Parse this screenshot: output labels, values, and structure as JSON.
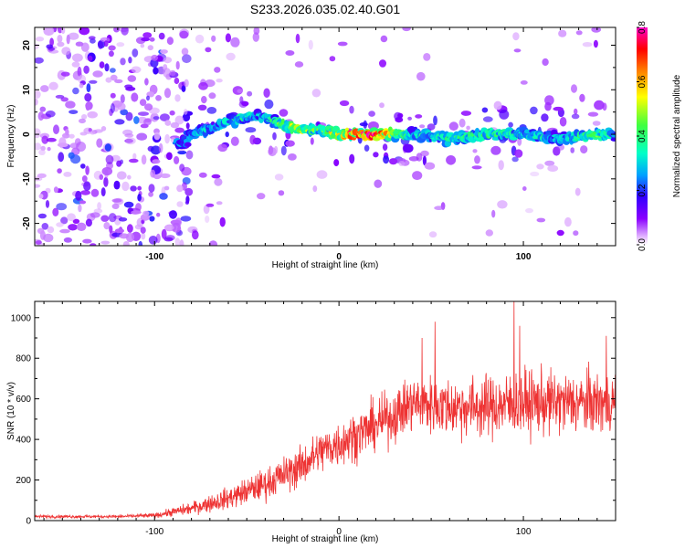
{
  "title": "S233.2026.035.02.40.G01",
  "chart_data": [
    {
      "type": "heatmap",
      "xlabel": "Height of straight line (km)",
      "ylabel": "Frequency (Hz)",
      "xlim": [
        -165,
        150
      ],
      "ylim": [
        -25,
        24
      ],
      "xticks": [
        -100,
        0,
        100
      ],
      "yticks": [
        -20,
        -10,
        0,
        10,
        20
      ],
      "colorbar": {
        "label": "Normalized spectral amplitude",
        "range": [
          0,
          0.8
        ],
        "ticks": [
          "0.0",
          "0.2",
          "0.4",
          "0.6",
          "0.8"
        ],
        "colormap": [
          "#ffffff",
          "#8a00ff",
          "#3300ff",
          "#00a0ff",
          "#00ffc8",
          "#40ff40",
          "#ffff00",
          "#ff8000",
          "#ff0000",
          "#ff00c8"
        ]
      },
      "ridge": {
        "x": [
          -85,
          -80,
          -70,
          -60,
          -50,
          -40,
          -30,
          -20,
          -10,
          0,
          10,
          20,
          30,
          40,
          60,
          80,
          100,
          120,
          140,
          150
        ],
        "frequency": [
          -2,
          0,
          1,
          3,
          4,
          4,
          2,
          1,
          1,
          0,
          0,
          0,
          0,
          0,
          -1,
          0,
          0,
          -1,
          0,
          0
        ],
        "peak_amplitude": [
          0.25,
          0.3,
          0.3,
          0.35,
          0.35,
          0.3,
          0.45,
          0.5,
          0.4,
          0.6,
          0.7,
          0.75,
          0.5,
          0.35,
          0.35,
          0.4,
          0.35,
          0.3,
          0.45,
          0.3
        ]
      }
    },
    {
      "type": "line",
      "xlabel": "Height of straight line (km)",
      "ylabel": "SNR (10 * v/v)",
      "xlim": [
        -165,
        150
      ],
      "ylim": [
        0,
        1080
      ],
      "xticks": [
        -100,
        0,
        100
      ],
      "yticks": [
        0,
        200,
        400,
        600,
        800,
        1000
      ],
      "color": "#ee3333",
      "trend": {
        "x": [
          -165,
          -120,
          -100,
          -80,
          -60,
          -40,
          -20,
          -10,
          0,
          20,
          30,
          40,
          60,
          80,
          100,
          120,
          150
        ],
        "mean": [
          20,
          20,
          25,
          60,
          110,
          180,
          270,
          340,
          380,
          470,
          520,
          580,
          560,
          560,
          580,
          580,
          580
        ],
        "spread": [
          10,
          10,
          15,
          40,
          70,
          100,
          130,
          140,
          150,
          160,
          170,
          180,
          190,
          200,
          210,
          200,
          200
        ]
      },
      "peaks": [
        {
          "x": 95,
          "y": 1080
        },
        {
          "x": 98,
          "y": 960
        },
        {
          "x": 52,
          "y": 980
        },
        {
          "x": 45,
          "y": 900
        },
        {
          "x": 145,
          "y": 910
        }
      ]
    }
  ]
}
